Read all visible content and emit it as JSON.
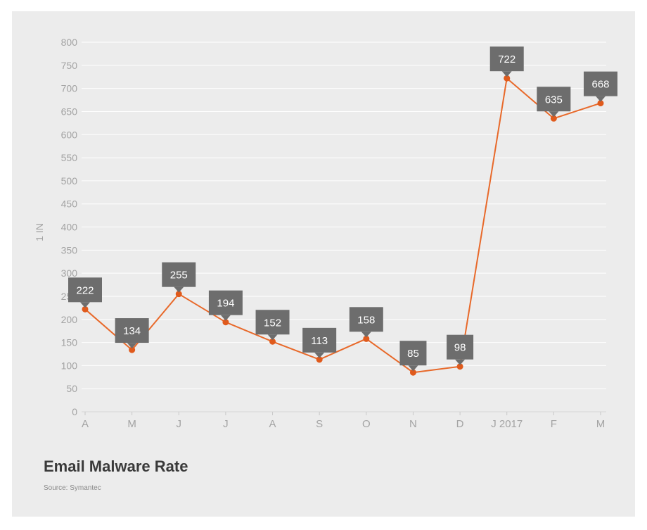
{
  "chart_data": {
    "type": "line",
    "title": "Email Malware Rate",
    "source": "Source: Symantec",
    "ylabel": "1 IN",
    "xlabel": "",
    "categories": [
      "A",
      "M",
      "J",
      "J",
      "A",
      "S",
      "O",
      "N",
      "D",
      "J 2017",
      "F",
      "M"
    ],
    "series": [
      {
        "values": [
          222,
          134,
          255,
          194,
          152,
          113,
          158,
          85,
          98,
          722,
          635,
          668
        ]
      }
    ],
    "data_labels": [
      "222",
      "134",
      "255",
      "194",
      "152",
      "113",
      "158",
      "85",
      "98",
      "722",
      "635",
      "668"
    ],
    "ylim": [
      0,
      800
    ],
    "yticks": [
      0,
      50,
      100,
      150,
      200,
      250,
      300,
      350,
      400,
      450,
      500,
      550,
      600,
      650,
      700,
      750,
      800
    ],
    "ytick_labels": [
      "0",
      "50",
      "100",
      "150",
      "200",
      "250",
      "300",
      "350",
      "400",
      "450",
      "500",
      "550",
      "600",
      "650",
      "700",
      "750",
      "800"
    ],
    "grid": true,
    "colors": {
      "line": "#e8692a",
      "marker": "#e05a1c",
      "label_box": "#6d6d6d",
      "label_text": "#ffffff",
      "grid": "#ffffff",
      "tick_text": "#a3a3a3",
      "background": "#ececec"
    }
  }
}
